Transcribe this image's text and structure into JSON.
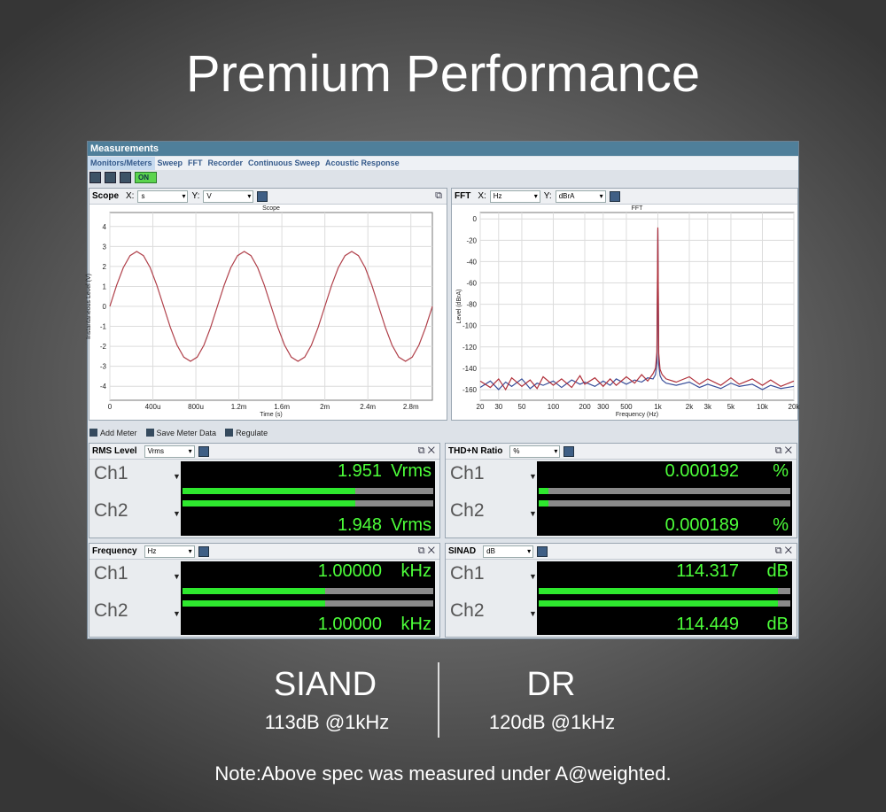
{
  "header": {
    "title": "Premium Performance"
  },
  "window": {
    "title": "Measurements",
    "tabs": [
      "Monitors/Meters",
      "Sweep",
      "FFT",
      "Recorder",
      "Continuous Sweep",
      "Acoustic Response"
    ],
    "toggle": "ON"
  },
  "scope": {
    "title": "Scope",
    "x_label": "X:",
    "x_unit": "s",
    "y_label": "Y:",
    "y_unit": "V",
    "chart": {
      "type": "line",
      "title": "Scope",
      "x_axis_label": "Time (s)",
      "y_axis_label": "Instantaneous Level (V)",
      "xlim": [
        0,
        0.003
      ],
      "ylim": [
        -4.7,
        4.7
      ],
      "xticks": [
        0,
        {
          "value": 0.0004,
          "label": "400u"
        },
        {
          "value": 0.0008,
          "label": "800u"
        },
        {
          "value": 0.0012,
          "label": "1.2m"
        },
        {
          "value": 0.0016,
          "label": "1.6m"
        },
        {
          "value": 0.002,
          "label": "2m"
        },
        {
          "value": 0.0024,
          "label": "2.4m"
        },
        {
          "value": 0.0028,
          "label": "2.8m"
        }
      ],
      "yticks": [
        -4,
        -3,
        -2,
        -1,
        0,
        1,
        2,
        3,
        4
      ],
      "grid": true,
      "x": [
        0,
        6.25e-05,
        0.000125,
        0.0001875,
        0.00025,
        0.0003125,
        0.000375,
        0.0004375,
        0.0005,
        0.0005625,
        0.000625,
        0.0006875,
        0.00075,
        0.0008125,
        0.000875,
        0.0009375,
        0.001,
        0.0010625,
        0.001125,
        0.0011875,
        0.00125,
        0.0013125,
        0.001375,
        0.0014375,
        0.0015,
        0.0015625,
        0.001625,
        0.0016875,
        0.00175,
        0.0018125,
        0.001875,
        0.0019375,
        0.002,
        0.0020625,
        0.002125,
        0.0021875,
        0.00225,
        0.0023125,
        0.002375,
        0.0024375,
        0.0025,
        0.0025625,
        0.002625,
        0.0026875,
        0.00275,
        0.0028125,
        0.002875,
        0.0029375,
        0.003
      ],
      "series": [
        {
          "color": "#b0404a",
          "values": [
            0,
            1.05,
            1.94,
            2.54,
            2.75,
            2.54,
            1.94,
            1.05,
            0,
            -1.05,
            -1.94,
            -2.54,
            -2.75,
            -2.54,
            -1.94,
            -1.05,
            0,
            1.05,
            1.94,
            2.54,
            2.75,
            2.54,
            1.94,
            1.05,
            0,
            -1.05,
            -1.94,
            -2.54,
            -2.75,
            -2.54,
            -1.94,
            -1.05,
            0,
            1.05,
            1.94,
            2.54,
            2.75,
            2.54,
            1.94,
            1.05,
            0,
            -1.05,
            -1.94,
            -2.54,
            -2.75,
            -2.54,
            -1.94,
            -1.05,
            0
          ]
        }
      ]
    }
  },
  "fft": {
    "title": "FFT",
    "x_label": "X:",
    "x_unit": "Hz",
    "y_label": "Y:",
    "y_unit": "dBrA",
    "chart": {
      "type": "line",
      "title": "FFT",
      "x_axis_label": "Frequency (Hz)",
      "y_axis_label": "Level (dBrA)",
      "xscale": "log",
      "xlim": [
        20,
        20000
      ],
      "ylim": [
        -170,
        6
      ],
      "xticks": [
        20,
        30,
        50,
        100,
        200,
        300,
        500,
        {
          "value": 1000,
          "label": "1k"
        },
        {
          "value": 2000,
          "label": "2k"
        },
        {
          "value": 3000,
          "label": "3k"
        },
        {
          "value": 5000,
          "label": "5k"
        },
        {
          "value": 10000,
          "label": "10k"
        },
        {
          "value": 20000,
          "label": "20k"
        }
      ],
      "yticks": [
        0,
        -20,
        -40,
        -60,
        -80,
        -100,
        -120,
        -140,
        -160
      ],
      "grid": true,
      "x": [
        20,
        25,
        30,
        35,
        40,
        50,
        60,
        70,
        80,
        100,
        120,
        150,
        180,
        200,
        250,
        300,
        350,
        400,
        500,
        600,
        700,
        800,
        900,
        950,
        980,
        1000,
        1020,
        1050,
        1100,
        1200,
        1500,
        2000,
        2500,
        3000,
        4000,
        5000,
        6000,
        8000,
        10000,
        12000,
        15000,
        20000
      ],
      "series": [
        {
          "color": "#3a4f9a",
          "values": [
            -158,
            -152,
            -160,
            -153,
            -157,
            -150,
            -159,
            -154,
            -156,
            -152,
            -158,
            -151,
            -155,
            -153,
            -157,
            -152,
            -156,
            -150,
            -155,
            -151,
            -153,
            -149,
            -150,
            -146,
            -135,
            -10,
            -136,
            -147,
            -151,
            -154,
            -156,
            -153,
            -158,
            -155,
            -159,
            -154,
            -157,
            -155,
            -160,
            -156,
            -159,
            -157
          ]
        },
        {
          "color": "#b0303a",
          "values": [
            -152,
            -158,
            -150,
            -160,
            -149,
            -157,
            -151,
            -159,
            -148,
            -156,
            -150,
            -158,
            -147,
            -155,
            -149,
            -157,
            -150,
            -156,
            -148,
            -154,
            -146,
            -152,
            -145,
            -140,
            -125,
            -8,
            -126,
            -141,
            -146,
            -150,
            -153,
            -148,
            -155,
            -150,
            -156,
            -149,
            -155,
            -150,
            -156,
            -151,
            -157,
            -152
          ]
        }
      ]
    }
  },
  "meter_toolbar": [
    "Add Meter",
    "Save Meter Data",
    "Regulate"
  ],
  "meters": [
    {
      "title": "RMS Level",
      "unit_select": "Vrms",
      "channels": [
        {
          "label": "Ch1",
          "value": "1.951",
          "unit": "Vrms"
        },
        {
          "label": "Ch2",
          "value": "1.948",
          "unit": "Vrms"
        }
      ]
    },
    {
      "title": "THD+N Ratio",
      "unit_select": "%",
      "channels": [
        {
          "label": "Ch1",
          "value": "0.000192",
          "unit": "%"
        },
        {
          "label": "Ch2",
          "value": "0.000189",
          "unit": "%"
        }
      ]
    },
    {
      "title": "Frequency",
      "unit_select": "Hz",
      "channels": [
        {
          "label": "Ch1",
          "value": "1.00000",
          "unit": "kHz"
        },
        {
          "label": "Ch2",
          "value": "1.00000",
          "unit": "kHz"
        }
      ]
    },
    {
      "title": "SINAD",
      "unit_select": "dB",
      "channels": [
        {
          "label": "Ch1",
          "value": "114.317",
          "unit": "dB"
        },
        {
          "label": "Ch2",
          "value": "114.449",
          "unit": "dB"
        }
      ]
    }
  ],
  "specs": [
    {
      "name": "SIAND",
      "value": "113dB @1kHz"
    },
    {
      "name": "DR",
      "value": "120dB @1kHz"
    }
  ],
  "note": "Note:Above spec was measured under A@weighted."
}
